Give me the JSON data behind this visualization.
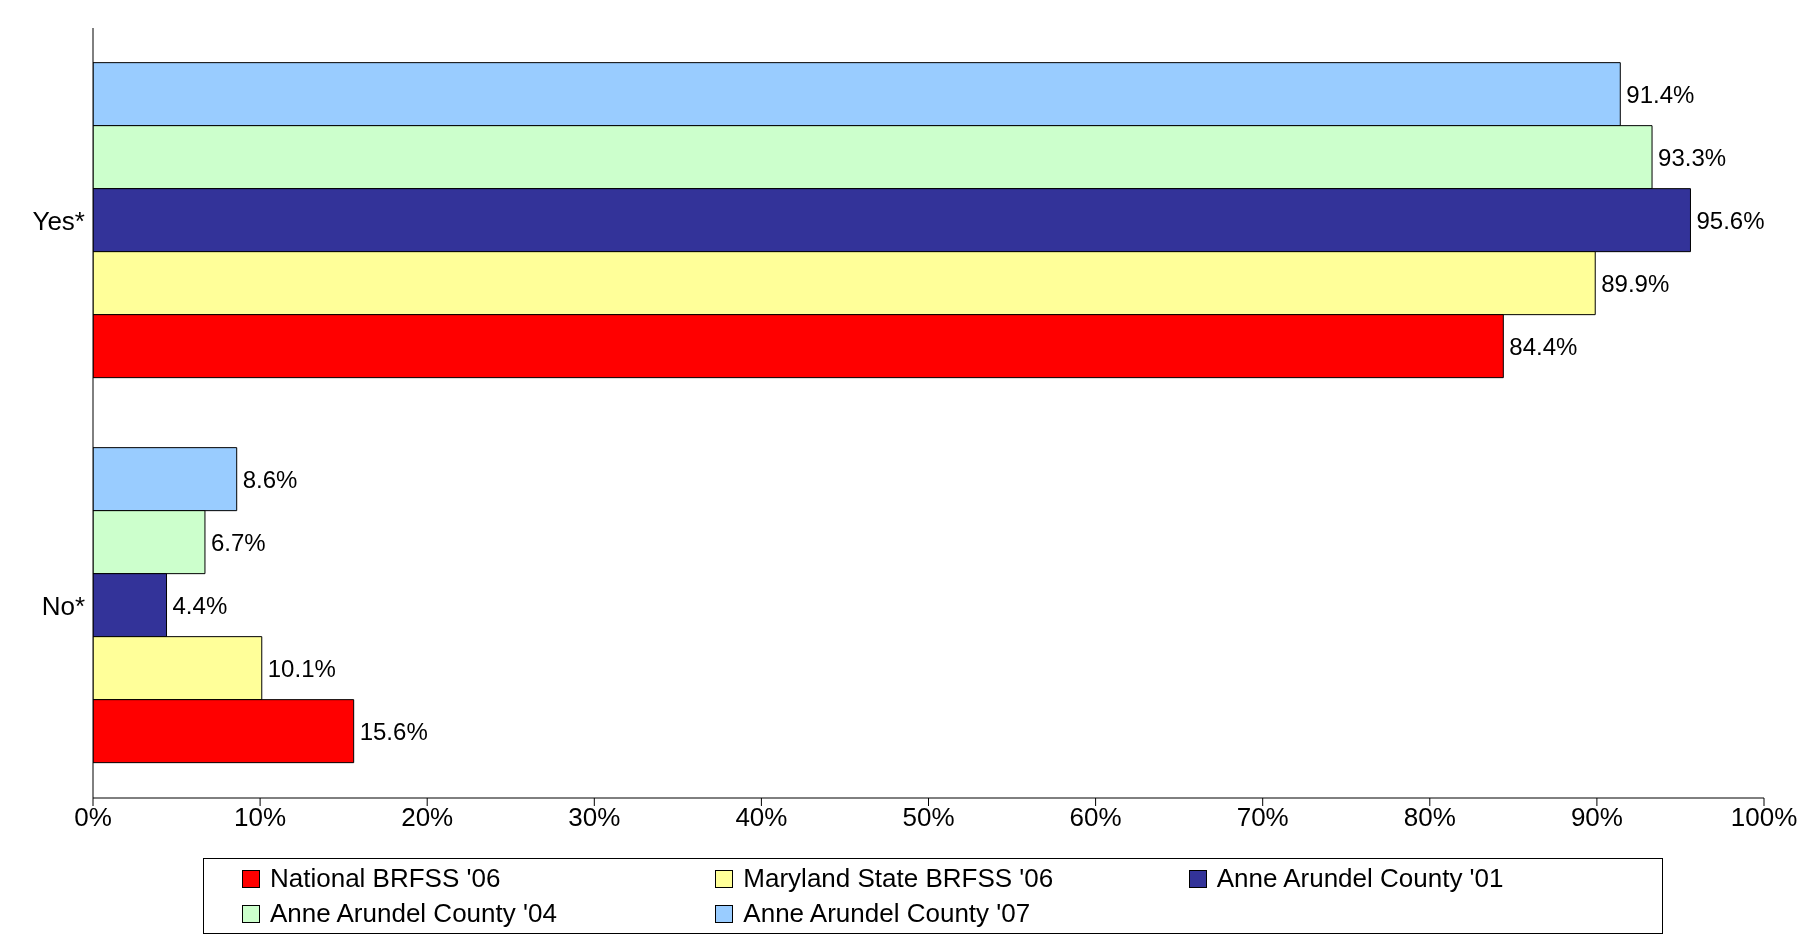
{
  "chart_data": {
    "type": "bar",
    "orientation": "horizontal",
    "categories": [
      "Yes*",
      "No*"
    ],
    "series": [
      {
        "name": "National BRFSS '06",
        "color": "#ff0000",
        "values": [
          84.4,
          15.6
        ],
        "value_labels": [
          "84.4%",
          "15.6%"
        ]
      },
      {
        "name": "Maryland State BRFSS '06",
        "color": "#ffff99",
        "values": [
          89.9,
          10.1
        ],
        "value_labels": [
          "89.9%",
          "10.1%"
        ]
      },
      {
        "name": "Anne Arundel County '01",
        "color": "#333399",
        "values": [
          95.6,
          4.4
        ],
        "value_labels": [
          "95.6%",
          "4.4%"
        ]
      },
      {
        "name": "Anne Arundel County '04",
        "color": "#ccffcc",
        "values": [
          93.3,
          6.7
        ],
        "value_labels": [
          "93.3%",
          "6.7%"
        ]
      },
      {
        "name": "Anne Arundel County '07",
        "color": "#99ccff",
        "values": [
          91.4,
          8.6
        ],
        "value_labels": [
          "91.4%",
          "8.6%"
        ]
      }
    ],
    "xlim": [
      0,
      100
    ],
    "xticks": [
      {
        "value": 0,
        "label": "0%"
      },
      {
        "value": 10,
        "label": "10%"
      },
      {
        "value": 20,
        "label": "20%"
      },
      {
        "value": 30,
        "label": "30%"
      },
      {
        "value": 40,
        "label": "40%"
      },
      {
        "value": 50,
        "label": "50%"
      },
      {
        "value": 60,
        "label": "60%"
      },
      {
        "value": 70,
        "label": "70%"
      },
      {
        "value": 80,
        "label": "80%"
      },
      {
        "value": 90,
        "label": "90%"
      },
      {
        "value": 100,
        "label": "100%"
      }
    ],
    "grid": false,
    "legend": "bottom"
  }
}
